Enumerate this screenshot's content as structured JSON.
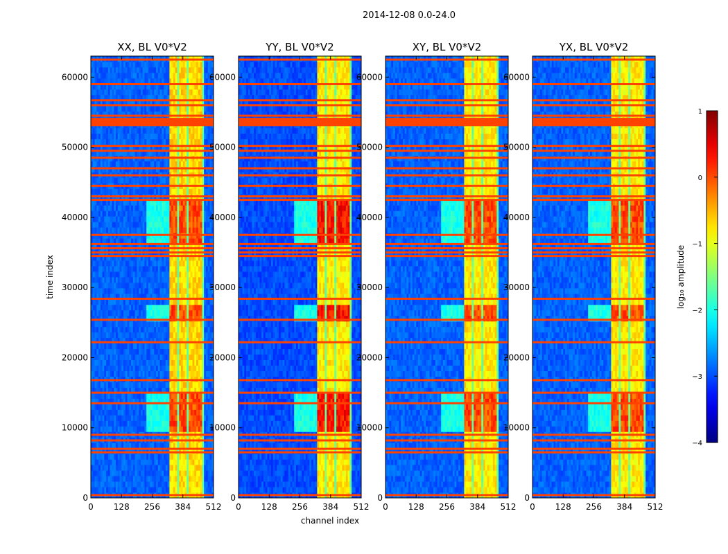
{
  "suptitle": "2014-12-08 0.0-24.0",
  "chart_data": {
    "type": "heatmap",
    "colormap": "jet",
    "colorbar": {
      "label": "log₁₀ amplitude",
      "range": [
        -4,
        1
      ],
      "ticks": [
        {
          "value": 1,
          "label": "1"
        },
        {
          "value": 0,
          "label": "0"
        },
        {
          "value": -1,
          "label": "−1"
        },
        {
          "value": -2,
          "label": "−2"
        },
        {
          "value": -3,
          "label": "−3"
        },
        {
          "value": -4,
          "label": "−4"
        }
      ]
    },
    "shared_axes": {
      "xlabel": "channel index",
      "ylabel": "time index",
      "xlim": [
        0,
        512
      ],
      "ylim": [
        0,
        63000
      ],
      "xticks": [
        0,
        128,
        256,
        384,
        512
      ],
      "yticks": [
        0,
        10000,
        20000,
        30000,
        40000,
        50000,
        60000
      ]
    },
    "panels": [
      {
        "title": "XX, BL V0*V2",
        "background_level": -2.9,
        "signal_level": -0.7,
        "peak_level": 0.3
      },
      {
        "title": "YY, BL V0*V2",
        "background_level": -3.0,
        "signal_level": -0.8,
        "peak_level": 0.6
      },
      {
        "title": "XY, BL V0*V2",
        "background_level": -2.9,
        "signal_level": -0.8,
        "peak_level": 0.3
      },
      {
        "title": "YX, BL V0*V2",
        "background_level": -2.9,
        "signal_level": -0.8,
        "peak_level": 0.3
      }
    ],
    "signal_channel_band": [
      330,
      470
    ],
    "signal_subbands": [
      [
        330,
        362
      ],
      [
        368,
        400
      ],
      [
        406,
        430
      ],
      [
        436,
        462
      ]
    ],
    "bright_time_ranges": [
      [
        9500,
        15000
      ],
      [
        36000,
        42500
      ],
      [
        25000,
        27500
      ]
    ],
    "flagged_time_rows": [
      400,
      6500,
      7000,
      8200,
      9000,
      13500,
      15000,
      16800,
      22200,
      25400,
      28400,
      34500,
      35000,
      35600,
      36200,
      37500,
      42500,
      43000,
      44500,
      46000,
      47000,
      48500,
      49500,
      50200,
      53500,
      54500,
      56000,
      56700,
      59000,
      62500
    ],
    "flagged_band": {
      "from": 53000,
      "to": 54200
    }
  }
}
